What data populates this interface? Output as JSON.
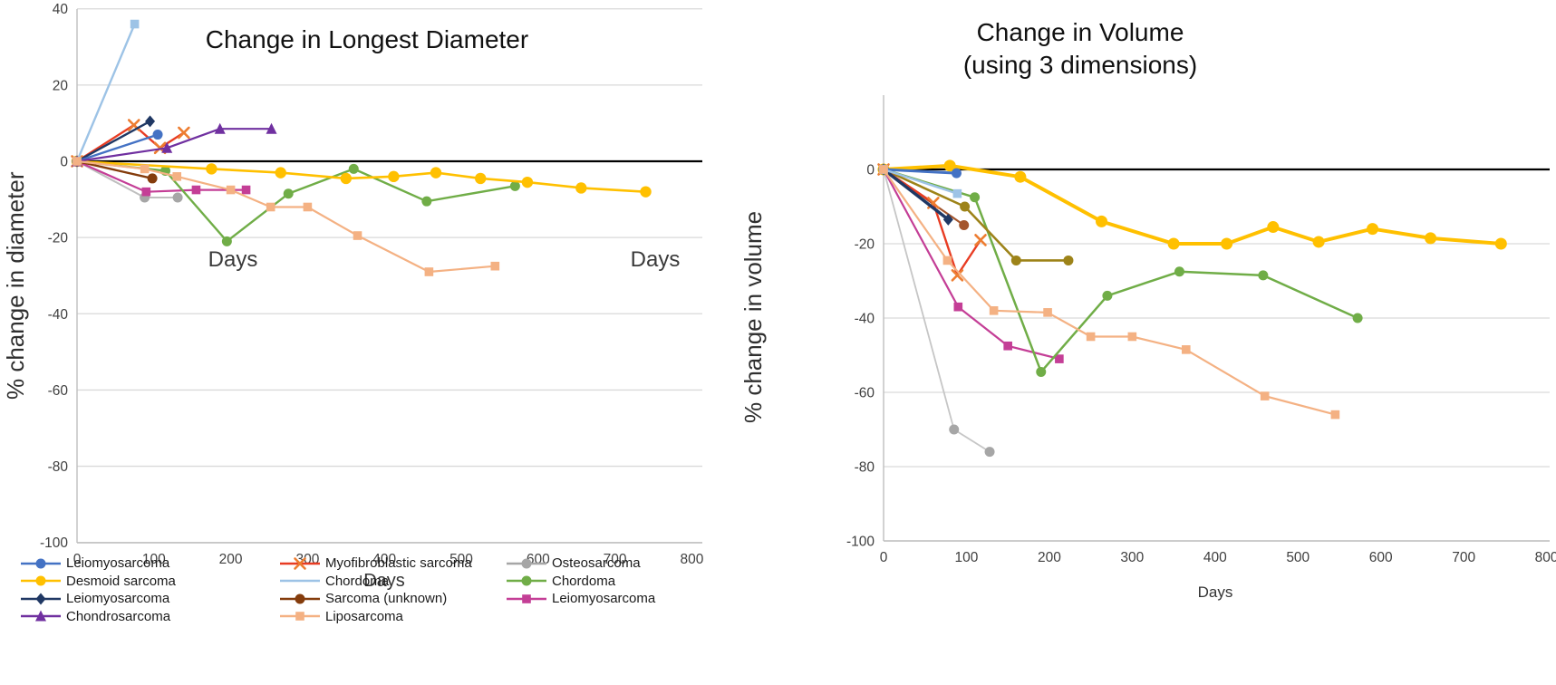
{
  "page": {
    "background": "#FFFFFF"
  },
  "chart_data": [
    {
      "type": "line",
      "title": "Change in Longest Diameter",
      "xlabel": "Days",
      "ylabel": "% change in diameter",
      "xlim": [
        0,
        800
      ],
      "ylim": [
        -100,
        40
      ],
      "x_ticks": [
        0,
        100,
        200,
        300,
        400,
        500,
        600,
        700,
        800
      ],
      "y_ticks": [
        40,
        20,
        0,
        -20,
        -40,
        -60,
        -80,
        -100
      ],
      "grid": "horizontal",
      "zero_line_color": "#000000",
      "grid_color": "#D9D9D9",
      "axis_color": "#BFBFBF",
      "inner_labels": [
        {
          "text": "Days",
          "x": 200,
          "y": -26
        },
        {
          "text": "Days",
          "x": 752,
          "y": -26
        }
      ],
      "series": [
        {
          "name": "Osteosarcoma",
          "color": "#BFBFBF",
          "marker_color": "#A6A6A6",
          "marker": "circle",
          "width": 2,
          "points": [
            [
              0,
              0
            ],
            [
              88,
              -9.5
            ],
            [
              131,
              -9.5
            ]
          ]
        },
        {
          "name": "Leiomyosarcoma",
          "color": "#C43E96",
          "marker": "square",
          "width": 2.2,
          "points": [
            [
              0,
              0
            ],
            [
              90,
              -8
            ],
            [
              155,
              -7.5
            ],
            [
              220,
              -7.5
            ]
          ]
        },
        {
          "name": "Chordoma",
          "color": "#70AD47",
          "marker": "circle",
          "width": 2.4,
          "points": [
            [
              0,
              0
            ],
            [
              115,
              -2.5
            ],
            [
              195,
              -21
            ],
            [
              275,
              -8.5
            ],
            [
              360,
              -2
            ],
            [
              455,
              -10.5
            ],
            [
              570,
              -6.5
            ]
          ]
        },
        {
          "name": "Desmoid sarcoma",
          "color": "#FFC000",
          "marker": "circle",
          "width": 2.6,
          "msize": 6.2,
          "points": [
            [
              0,
              0
            ],
            [
              175,
              -2
            ],
            [
              265,
              -3
            ],
            [
              350,
              -4.5
            ],
            [
              412,
              -4
            ],
            [
              467,
              -3
            ],
            [
              525,
              -4.5
            ],
            [
              586,
              -5.5
            ],
            [
              656,
              -7
            ],
            [
              740,
              -8
            ]
          ]
        },
        {
          "name": "Sarcoma (unknown)",
          "color": "#843C0C",
          "marker": "circle",
          "width": 2.4,
          "points": [
            [
              0,
              0
            ],
            [
              98,
              -4.5
            ]
          ]
        },
        {
          "name": "Myofibroblastic sarcoma",
          "color": "#E83C23",
          "marker": "x",
          "marker_color": "#ED7D31",
          "width": 2.4,
          "points": [
            [
              0,
              0
            ],
            [
              74,
              9.5
            ],
            [
              108,
              3.5
            ],
            [
              139,
              7.5
            ]
          ]
        },
        {
          "name": "Leiomyosarcoma",
          "color": "#203864",
          "marker": "diamond",
          "width": 2.4,
          "points": [
            [
              0,
              0
            ],
            [
              95,
              10.5
            ]
          ]
        },
        {
          "name": "Leiomyosarcoma",
          "color": "#4472C4",
          "marker": "circle",
          "width": 2.4,
          "points": [
            [
              0,
              0
            ],
            [
              105,
              7
            ]
          ]
        },
        {
          "name": "Chordoma",
          "color": "#9DC3E6",
          "marker": "square",
          "width": 2.4,
          "points": [
            [
              0,
              0
            ],
            [
              75,
              36
            ]
          ]
        },
        {
          "name": "Chondrosarcoma",
          "color": "#7030A0",
          "marker": "triangle",
          "width": 2.2,
          "points": [
            [
              0,
              0
            ],
            [
              117,
              3.5
            ],
            [
              186,
              8.5
            ],
            [
              253,
              8.5
            ]
          ]
        },
        {
          "name": "Liposarcoma",
          "color": "#F4B183",
          "marker": "square",
          "width": 2.2,
          "points": [
            [
              0,
              0
            ],
            [
              88,
              -2
            ],
            [
              130,
              -4
            ],
            [
              200,
              -7.5
            ],
            [
              252,
              -12
            ],
            [
              300,
              -12
            ],
            [
              365,
              -19.5
            ],
            [
              458,
              -29
            ],
            [
              544,
              -27.5
            ]
          ]
        }
      ]
    },
    {
      "type": "line",
      "title": "Change in Volume",
      "subtitle": "(using 3 dimensions)",
      "xlabel": "Days",
      "ylabel": "% change in volume",
      "xlim": [
        0,
        800
      ],
      "ylim": [
        -100,
        20
      ],
      "x_ticks": [
        0,
        100,
        200,
        300,
        400,
        500,
        600,
        700,
        800
      ],
      "y_ticks": [
        0,
        -20,
        -40,
        -60,
        -80,
        -100
      ],
      "grid": "horizontal",
      "zero_line_color": "#000000",
      "grid_color": "#D9D9D9",
      "axis_color": "#BFBFBF",
      "inner_labels": [],
      "series": [
        {
          "name": "Osteosarcoma",
          "color": "#C6C6C6",
          "marker_color": "#A6A6A6",
          "marker": "circle",
          "width": 1.8,
          "points": [
            [
              0,
              0
            ],
            [
              85,
              -70
            ],
            [
              128,
              -76
            ]
          ]
        },
        {
          "name": "Leiomyosarcoma",
          "color": "#C43E96",
          "marker": "square",
          "width": 2.2,
          "points": [
            [
              0,
              0
            ],
            [
              90,
              -37
            ],
            [
              150,
              -47.5
            ],
            [
              212,
              -51
            ]
          ]
        },
        {
          "name": "Chordoma",
          "color": "#70AD47",
          "marker": "circle",
          "width": 2.5,
          "points": [
            [
              0,
              0
            ],
            [
              110,
              -7.5
            ],
            [
              190,
              -54.5
            ],
            [
              270,
              -34
            ],
            [
              357,
              -27.5
            ],
            [
              458,
              -28.5
            ],
            [
              572,
              -40
            ]
          ]
        },
        {
          "name": "Desmoid sarcoma",
          "color": "#FFC000",
          "marker": "circle",
          "width": 4,
          "msize": 6.5,
          "points": [
            [
              0,
              0
            ],
            [
              80,
              1
            ],
            [
              165,
              -2
            ],
            [
              263,
              -14
            ],
            [
              350,
              -20
            ],
            [
              414,
              -20
            ],
            [
              470,
              -15.5
            ],
            [
              525,
              -19.5
            ],
            [
              590,
              -16
            ],
            [
              660,
              -18.5
            ],
            [
              745,
              -20
            ]
          ]
        },
        {
          "name": "Chondrosarcoma",
          "color": "#9D8319",
          "marker": "circle",
          "width": 2.6,
          "points": [
            [
              0,
              0
            ],
            [
              98,
              -10
            ],
            [
              160,
              -24.5
            ],
            [
              223,
              -24.5
            ]
          ]
        },
        {
          "name": "Sarcoma (unknown)",
          "color": "#A4552C",
          "marker": "circle",
          "width": 2.2,
          "points": [
            [
              0,
              0
            ],
            [
              97,
              -15
            ]
          ]
        },
        {
          "name": "Myofibroblastic sarcoma",
          "color": "#E83C23",
          "marker": "x",
          "marker_color": "#ED7D31",
          "width": 2.4,
          "points": [
            [
              0,
              0
            ],
            [
              60,
              -9
            ],
            [
              89,
              -28.5
            ],
            [
              117,
              -19
            ]
          ]
        },
        {
          "name": "Leiomyosarcoma",
          "color": "#203864",
          "marker": "diamond",
          "width": 3.5,
          "points": [
            [
              0,
              0
            ],
            [
              78,
              -13.5
            ]
          ]
        },
        {
          "name": "Leiomyosarcoma",
          "color": "#4472C4",
          "marker": "circle",
          "width": 3,
          "points": [
            [
              0,
              0
            ],
            [
              88,
              -1
            ]
          ]
        },
        {
          "name": "Chordoma",
          "color": "#9DC3E6",
          "marker": "square",
          "width": 2.4,
          "points": [
            [
              0,
              0
            ],
            [
              89,
              -6.5
            ]
          ]
        },
        {
          "name": "Liposarcoma",
          "color": "#F4B183",
          "marker": "square",
          "width": 2.2,
          "points": [
            [
              0,
              0
            ],
            [
              77,
              -24.5
            ],
            [
              133,
              -38
            ],
            [
              198,
              -38.5
            ],
            [
              250,
              -45
            ],
            [
              300,
              -45
            ],
            [
              365,
              -48.5
            ],
            [
              460,
              -61
            ],
            [
              545,
              -66
            ]
          ]
        }
      ]
    }
  ],
  "legend": {
    "columns": [
      [
        {
          "label": "Leiomyosarcoma",
          "color": "#4472C4",
          "marker": "circle"
        },
        {
          "label": "Desmoid sarcoma",
          "color": "#FFC000",
          "marker": "circle"
        },
        {
          "label": "Leiomyosarcoma",
          "color": "#203864",
          "marker": "diamond"
        },
        {
          "label": "Chondrosarcoma",
          "color": "#7030A0",
          "marker": "triangle"
        }
      ],
      [
        {
          "label": "Myofibroblastic sarcoma",
          "color": "#E83C23",
          "marker": "x",
          "marker_color": "#ED7D31"
        },
        {
          "label": "Chordoma",
          "color": "#9DC3E6",
          "marker": "none"
        },
        {
          "label": "Sarcoma (unknown)",
          "color": "#843C0C",
          "marker": "circle"
        },
        {
          "label": "Liposarcoma",
          "color": "#F4B183",
          "marker": "square"
        }
      ],
      [
        {
          "label": "Osteosarcoma",
          "color": "#A6A6A6",
          "marker": "circle"
        },
        {
          "label": "Chordoma",
          "color": "#70AD47",
          "marker": "circle"
        },
        {
          "label": "Leiomyosarcoma",
          "color": "#C43E96",
          "marker": "square"
        }
      ]
    ]
  }
}
